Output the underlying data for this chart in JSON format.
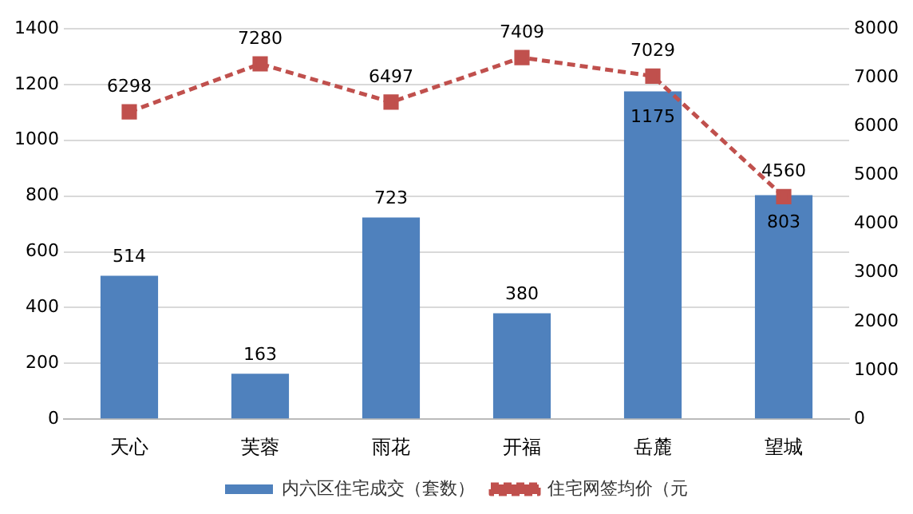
{
  "chart_data": {
    "type": "bar",
    "categories": [
      "天心",
      "芙蓉",
      "雨花",
      "开福",
      "岳麓",
      "望城"
    ],
    "series": [
      {
        "name": "内六区住宅成交（套数）",
        "color": "#4f81bd",
        "values": [
          514,
          163,
          723,
          380,
          1175,
          803
        ]
      },
      {
        "name": "住宅网签均价（元",
        "type": "line",
        "axis": "y2",
        "color": "#c0504d",
        "marker": "square",
        "line_style": "dashed",
        "values": [
          6298,
          7280,
          6497,
          7409,
          7029,
          4560
        ]
      }
    ],
    "ylim": [
      0,
      1400
    ],
    "yticks": [
      0,
      200,
      400,
      600,
      800,
      1000,
      1200,
      1400
    ],
    "y2lim": [
      0,
      8000
    ],
    "y2ticks": [
      0,
      1000,
      2000,
      3000,
      4000,
      5000,
      6000,
      7000,
      8000
    ],
    "grid": "y",
    "legend": "bottom",
    "data_labels": true
  }
}
